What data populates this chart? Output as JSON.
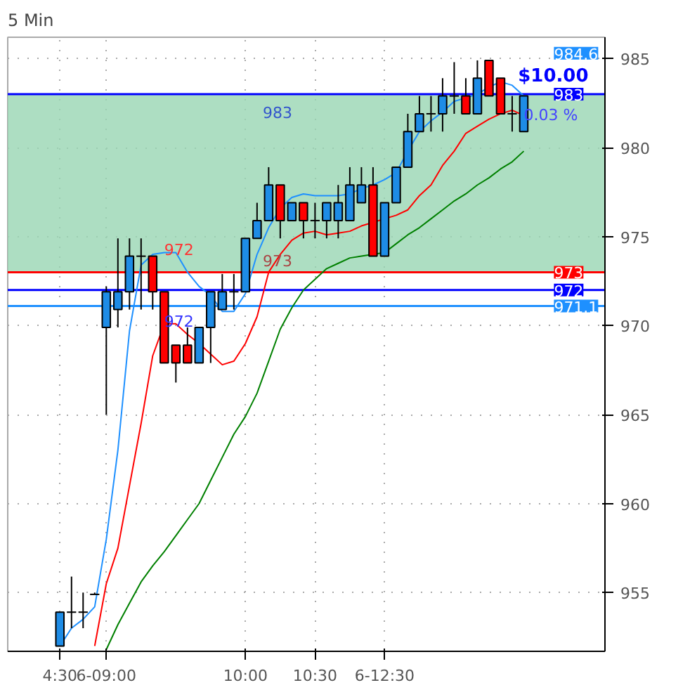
{
  "chart_data": {
    "type": "candlestick",
    "title": "5 Min",
    "categories": [
      "4:30",
      null,
      null,
      null,
      "6-09:00",
      null,
      null,
      null,
      null,
      null,
      null,
      null,
      null,
      null,
      null,
      null,
      "10:00",
      null,
      null,
      null,
      null,
      null,
      "10:30",
      null,
      null,
      null,
      null,
      null,
      "6-12:30",
      null,
      null,
      null,
      null,
      null,
      null,
      null,
      null,
      null,
      null,
      null,
      null
    ],
    "ohlc": [
      [
        952.0,
        953.9,
        952.0,
        953.9
      ],
      [
        953.9,
        955.9,
        953.0,
        953.9
      ],
      [
        953.9,
        955.0,
        953.0,
        953.9
      ],
      [
        954.9,
        955.0,
        954.9,
        954.9
      ],
      [
        969.9,
        972.2,
        965.0,
        971.9
      ],
      [
        970.9,
        974.9,
        969.9,
        971.9
      ],
      [
        971.9,
        974.9,
        970.9,
        973.9
      ],
      [
        973.9,
        974.9,
        970.9,
        973.9
      ],
      [
        973.9,
        973.9,
        970.9,
        971.9
      ],
      [
        971.9,
        971.9,
        967.9,
        967.9
      ],
      [
        968.9,
        968.9,
        966.8,
        967.9
      ],
      [
        968.9,
        969.9,
        967.9,
        967.9
      ],
      [
        967.9,
        969.9,
        967.9,
        969.9
      ],
      [
        969.9,
        971.9,
        967.9,
        971.9
      ],
      [
        970.9,
        972.9,
        970.9,
        971.9
      ],
      [
        971.9,
        972.9,
        970.9,
        971.9
      ],
      [
        971.9,
        974.9,
        971.9,
        974.9
      ],
      [
        974.9,
        976.9,
        974.9,
        975.9
      ],
      [
        975.9,
        978.9,
        975.9,
        977.9
      ],
      [
        977.9,
        977.9,
        974.9,
        975.9
      ],
      [
        975.9,
        976.9,
        975.9,
        976.9
      ],
      [
        976.9,
        976.9,
        974.9,
        975.9
      ],
      [
        975.9,
        976.9,
        974.9,
        975.9
      ],
      [
        975.9,
        976.9,
        974.9,
        976.9
      ],
      [
        975.9,
        977.9,
        974.9,
        976.9
      ],
      [
        975.9,
        978.9,
        975.9,
        977.9
      ],
      [
        976.9,
        978.9,
        976.9,
        977.9
      ],
      [
        977.9,
        978.9,
        973.9,
        973.9
      ],
      [
        973.9,
        976.9,
        973.9,
        976.9
      ],
      [
        976.9,
        978.9,
        976.9,
        978.9
      ],
      [
        978.9,
        981.9,
        978.9,
        980.9
      ],
      [
        980.9,
        982.9,
        980.9,
        981.9
      ],
      [
        981.9,
        982.9,
        980.9,
        981.9
      ],
      [
        981.9,
        983.9,
        980.9,
        982.9
      ],
      [
        982.9,
        984.8,
        981.9,
        982.9
      ],
      [
        982.9,
        983.9,
        981.9,
        981.9
      ],
      [
        981.9,
        984.9,
        981.9,
        983.9
      ],
      [
        984.9,
        984.9,
        982.9,
        982.9
      ],
      [
        983.9,
        983.9,
        981.9,
        981.9
      ],
      [
        981.9,
        982.9,
        980.9,
        981.9
      ],
      [
        980.9,
        982.9,
        980.9,
        982.9
      ]
    ],
    "colors": [
      "#1e8ce6",
      "#000000",
      "#000000",
      "#000000",
      "#1e8ce6",
      "#1e8ce6",
      "#1e8ce6",
      "#000000",
      "#ff0000",
      "#ff0000",
      "#ff0000",
      "#ff0000",
      "#1e8ce6",
      "#1e8ce6",
      "#1e8ce6",
      "#000000",
      "#1e8ce6",
      "#1e8ce6",
      "#1e8ce6",
      "#ff0000",
      "#1e8ce6",
      "#ff0000",
      "#000000",
      "#1e8ce6",
      "#1e8ce6",
      "#1e8ce6",
      "#1e8ce6",
      "#ff0000",
      "#1e8ce6",
      "#1e8ce6",
      "#1e8ce6",
      "#1e8ce6",
      "#000000",
      "#1e8ce6",
      "#000000",
      "#ff0000",
      "#1e8ce6",
      "#ff0000",
      "#ff0000",
      "#000000",
      "#1e8ce6"
    ],
    "series": [
      {
        "type": "line",
        "color": "#1e90ff",
        "values": [
          952.0,
          953.0,
          953.5,
          954.2,
          958.0,
          963.0,
          969.7,
          973.4,
          974.0,
          974.1,
          974.1,
          973.0,
          972.2,
          971.7,
          970.8,
          970.8,
          971.8,
          974.0,
          975.5,
          976.6,
          977.2,
          977.4,
          977.3,
          977.3,
          977.3,
          977.4,
          977.7,
          977.9,
          978.2,
          978.6,
          979.8,
          980.9,
          981.5,
          982.0,
          982.6,
          982.8,
          983.0,
          983.4,
          983.7,
          983.5,
          982.9
        ]
      },
      {
        "type": "line",
        "color": "#ff0000",
        "values": [
          null,
          null,
          null,
          952.0,
          955.5,
          957.5,
          961.0,
          964.5,
          968.3,
          970.1,
          970.1,
          969.5,
          969.0,
          968.4,
          967.8,
          968.0,
          969.0,
          970.5,
          973.0,
          974.0,
          974.8,
          975.2,
          975.3,
          975.1,
          975.2,
          975.3,
          975.6,
          975.8,
          976.0,
          976.2,
          976.5,
          977.3,
          977.9,
          979.0,
          979.8,
          980.8,
          981.2,
          981.6,
          981.9,
          982.1,
          981.8
        ]
      },
      {
        "type": "line",
        "color": "#008000",
        "values": [
          null,
          null,
          null,
          null,
          951.8,
          953.2,
          954.4,
          955.6,
          956.5,
          957.3,
          958.2,
          959.1,
          960.0,
          961.3,
          962.6,
          963.9,
          964.9,
          966.2,
          968.0,
          969.8,
          971.0,
          972.0,
          972.6,
          973.2,
          973.5,
          973.8,
          973.9,
          974.0,
          974.1,
          974.6,
          975.1,
          975.5,
          976.0,
          976.5,
          977.0,
          977.4,
          977.9,
          978.3,
          978.8,
          979.2,
          979.8
        ]
      }
    ],
    "ylim": [
      951.7,
      986.2
    ],
    "yticks": [
      955,
      960,
      965,
      970,
      975,
      980,
      985
    ],
    "grid": true,
    "bands": [
      {
        "axis": "y",
        "from": 973,
        "to": 983,
        "color": "#99d6b3"
      }
    ],
    "ref_lines": [
      {
        "axis": "y",
        "value": 983,
        "label": "983",
        "color": "#0000ff"
      },
      {
        "axis": "y",
        "value": 973,
        "label": "973",
        "color": "#ff0000"
      },
      {
        "axis": "y",
        "value": 972,
        "label": "972",
        "color": "#0000ff"
      },
      {
        "axis": "y",
        "value": 971.1,
        "label": "971.1",
        "color": "#1e90ff"
      }
    ],
    "annotations": [
      "984.6",
      "$10.00",
      "0.03 %",
      "983",
      "973",
      "972",
      "972"
    ]
  }
}
